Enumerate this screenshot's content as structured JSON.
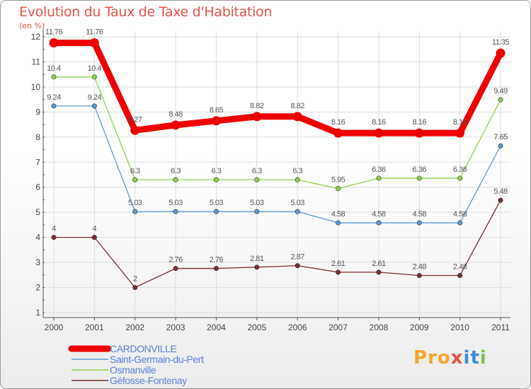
{
  "header": {
    "title": "Evolution du Taux de Taxe d'Habitation",
    "unit": "(en %)"
  },
  "logo": {
    "text": "Proxiti",
    "parts": [
      "Pro",
      "x",
      "it",
      "i"
    ]
  },
  "chart_data": {
    "type": "line",
    "title": "Evolution du Taux de Taxe d'Habitation",
    "ylabel": "(en %)",
    "xlabel": "",
    "ylim": [
      1,
      12
    ],
    "yticks": [
      "1",
      "2",
      "3",
      "4",
      "5",
      "6",
      "7",
      "8",
      "9",
      "10",
      "11",
      "12"
    ],
    "x": [
      "2000",
      "2001",
      "2002",
      "2003",
      "2004",
      "2005",
      "2006",
      "2007",
      "2008",
      "2009",
      "2010",
      "2011"
    ],
    "grid": true,
    "legend": "bottom-left",
    "series": [
      {
        "name": "CARDONVILLE",
        "color": "#ee0000",
        "emphasis": true,
        "values": [
          11.76,
          11.76,
          8.27,
          8.48,
          8.65,
          8.82,
          8.82,
          8.16,
          8.16,
          8.16,
          8.16,
          11.35
        ],
        "labels": [
          "11.76",
          "11.76",
          "8.27",
          "8.48",
          "8.65",
          "8.82",
          "8.82",
          "8.16",
          "8.16",
          "8.16",
          "8.16",
          "11.35"
        ]
      },
      {
        "name": "Saint-Germain-du-Pert",
        "color": "#5a9bd5",
        "values": [
          9.24,
          9.24,
          5.03,
          5.03,
          5.03,
          5.03,
          5.03,
          4.58,
          4.58,
          4.58,
          4.58,
          7.65
        ],
        "labels": [
          "9.24",
          "9.24",
          "5.03",
          "5.03",
          "5.03",
          "5.03",
          "5.03",
          "4.58",
          "4.58",
          "4.58",
          "4.58",
          "7.65"
        ]
      },
      {
        "name": "Osmanville",
        "color": "#8fd14f",
        "values": [
          10.4,
          10.4,
          6.3,
          6.3,
          6.3,
          6.3,
          6.3,
          5.95,
          6.36,
          6.36,
          6.36,
          9.49
        ],
        "labels": [
          "10.4",
          "10.4",
          "6.3",
          "6.3",
          "6.3",
          "6.3",
          "6.3",
          "5.95",
          "6.36",
          "6.36",
          "6.36",
          "9.49"
        ]
      },
      {
        "name": "Géfosse-Fontenay",
        "color": "#7a2e2e",
        "values": [
          4,
          4,
          2,
          2.76,
          2.76,
          2.81,
          2.87,
          2.61,
          2.61,
          2.48,
          2.48,
          5.48
        ],
        "labels": [
          "4",
          "4",
          "2",
          "2.76",
          "2.76",
          "2.81",
          "2.87",
          "2.61",
          "2.61",
          "2.48",
          "2.48",
          "5.48"
        ]
      }
    ]
  }
}
